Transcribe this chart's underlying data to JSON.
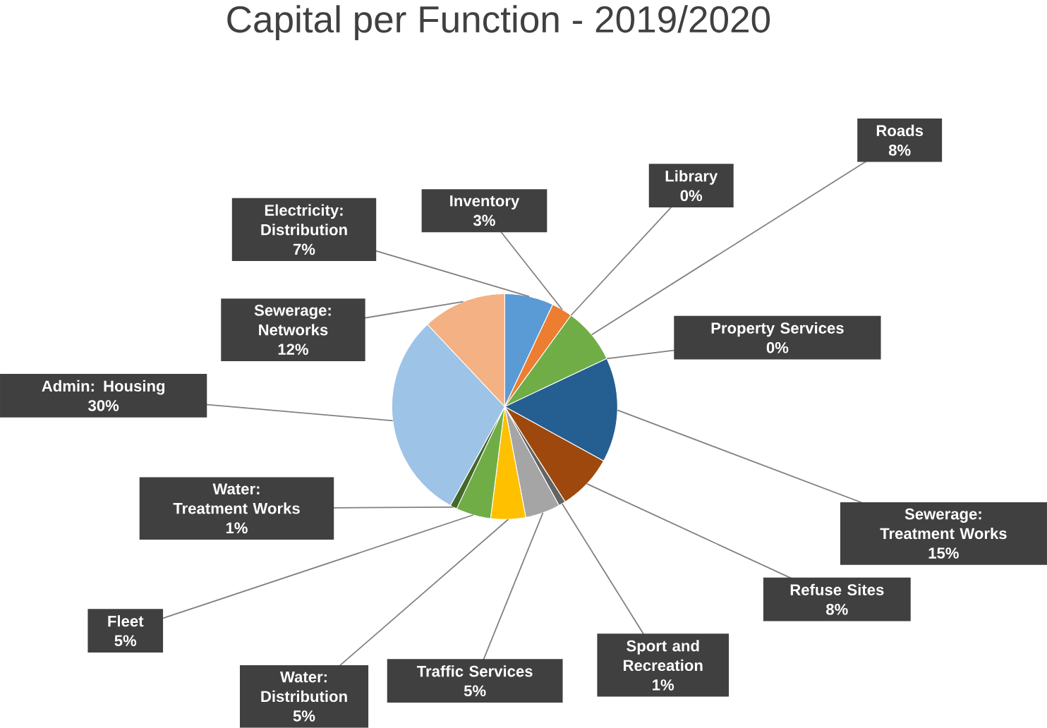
{
  "chart_data": {
    "type": "pie",
    "title": "Capital per Function - 2019/2020",
    "categories": [
      "Electricity: Distribution",
      "Inventory",
      "Library",
      "Roads",
      "Property Services",
      "Sewerage: Treatment Works",
      "Refuse Sites",
      "Sport and Recreation",
      "Traffic Services",
      "Water: Distribution",
      "Fleet",
      "Water: Treatment Works",
      "Admin: Housing",
      "Sewerage: Networks"
    ],
    "values": [
      7,
      3,
      0,
      8,
      0,
      15,
      8,
      1,
      5,
      5,
      5,
      1,
      30,
      12
    ],
    "value_labels": [
      "7%",
      "3%",
      "0%",
      "8%",
      "0%",
      "15%",
      "8%",
      "1%",
      "5%",
      "5%",
      "5%",
      "1%",
      "30%",
      "12%"
    ],
    "colors": [
      "#5b9bd5",
      "#ed7d31",
      "#a5a5a5",
      "#70ad47",
      "#ffc000",
      "#255e91",
      "#9e480e",
      "#636363",
      "#a5a5a5",
      "#ffc000",
      "#70ad47",
      "#43682b",
      "#9dc3e6",
      "#f4b183"
    ]
  }
}
